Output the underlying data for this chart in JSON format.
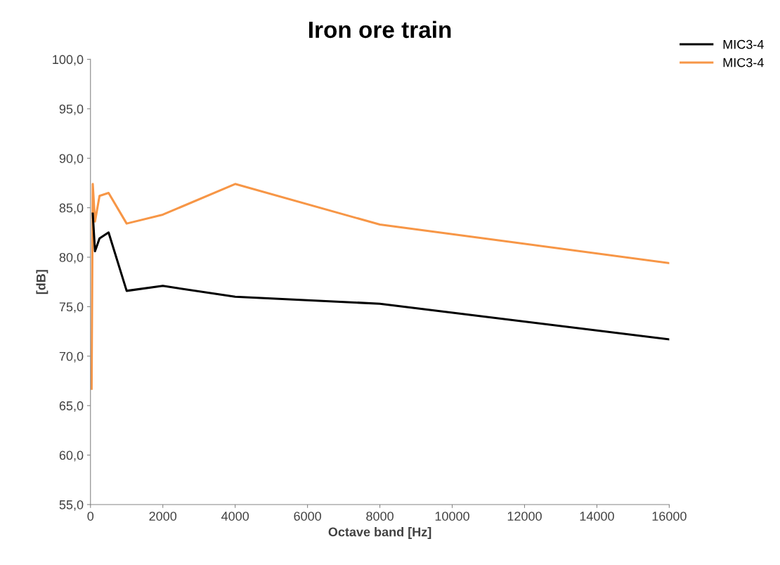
{
  "chart_data": {
    "type": "line",
    "title": "Iron ore train",
    "xlabel": "Octave band [Hz]",
    "ylabel": "[dB]",
    "x": [
      31.5,
      63,
      125,
      250,
      500,
      1000,
      2000,
      4000,
      8000,
      16000
    ],
    "series": [
      {
        "name": "MIC3-4",
        "color": "#000000",
        "values": [
          null,
          84.4,
          80.6,
          81.9,
          82.5,
          76.6,
          77.1,
          76.0,
          75.3,
          71.7
        ]
      },
      {
        "name": "MIC3-4",
        "color": "#f79646",
        "values": [
          66.7,
          87.4,
          83.6,
          86.2,
          86.5,
          83.4,
          84.3,
          87.4,
          83.3,
          79.4
        ]
      }
    ],
    "xlim": [
      0,
      16000
    ],
    "xticks": [
      0,
      2000,
      4000,
      6000,
      8000,
      10000,
      12000,
      14000,
      16000
    ],
    "ylim": [
      55,
      100
    ],
    "yticks": [
      {
        "value": 55,
        "label": "55,0"
      },
      {
        "value": 60,
        "label": "60,0"
      },
      {
        "value": 65,
        "label": "65,0"
      },
      {
        "value": 70,
        "label": "70,0"
      },
      {
        "value": 75,
        "label": "75,0"
      },
      {
        "value": 80,
        "label": "80,0"
      },
      {
        "value": 85,
        "label": "85,0"
      },
      {
        "value": 90,
        "label": "90,0"
      },
      {
        "value": 95,
        "label": "95,0"
      },
      {
        "value": 100,
        "label": "100,0"
      }
    ],
    "grid": false,
    "legend": "top right",
    "marker": "none",
    "line_style": "solid"
  }
}
